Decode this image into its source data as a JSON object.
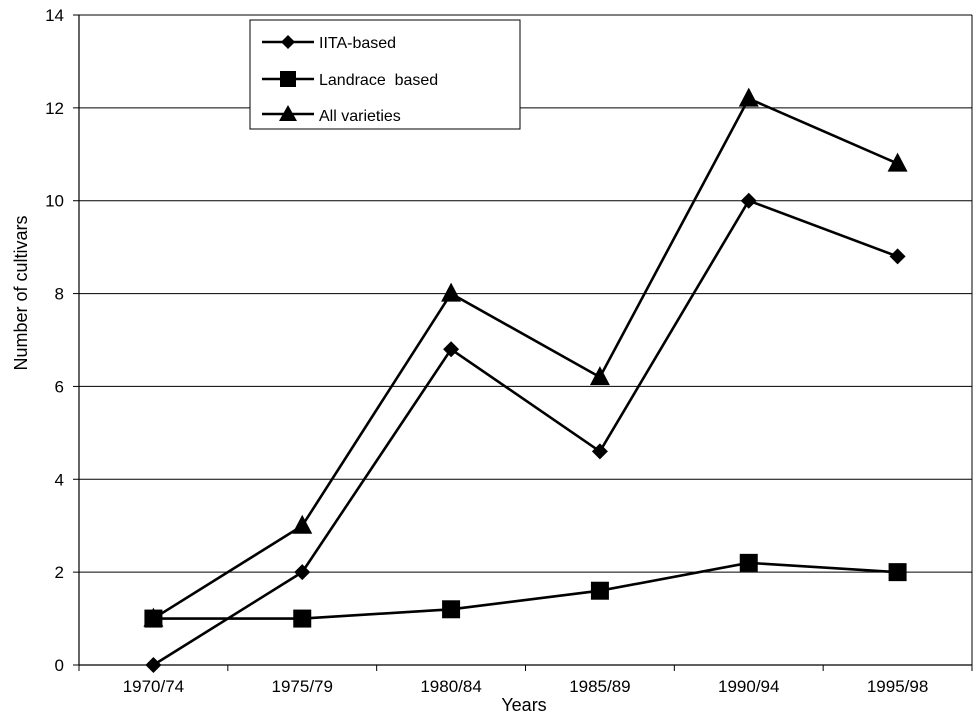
{
  "chart_data": {
    "type": "line",
    "title": "",
    "xlabel": "Years",
    "ylabel": "Number of cultivars",
    "categories": [
      "1970/74",
      "1975/79",
      "1980/84",
      "1985/89",
      "1990/94",
      "1995/98"
    ],
    "ylim": [
      0,
      14
    ],
    "yticks": [
      "0",
      "2",
      "4",
      "6",
      "8",
      "10",
      "12",
      "14"
    ],
    "grid": true,
    "legend_position": "top-left",
    "series": [
      {
        "name": "IITA-based",
        "marker": "diamond",
        "values": [
          0,
          2,
          6.8,
          4.6,
          10,
          8.8
        ]
      },
      {
        "name": "Landrace  based",
        "marker": "square",
        "values": [
          1,
          1,
          1.2,
          1.6,
          2.2,
          2
        ]
      },
      {
        "name": "All varieties",
        "marker": "triangle",
        "values": [
          1,
          3,
          8,
          6.2,
          12.2,
          10.8
        ]
      }
    ]
  }
}
